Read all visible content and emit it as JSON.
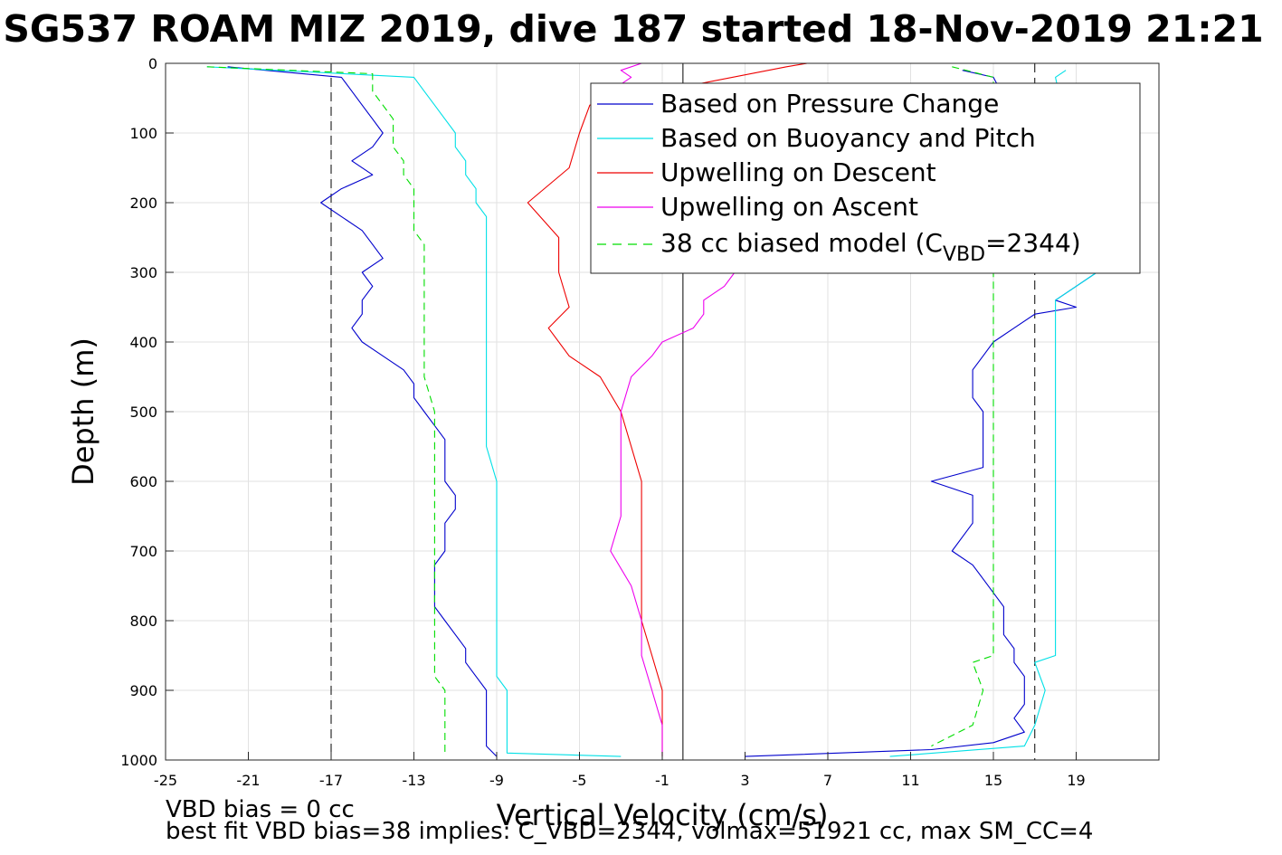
{
  "chart_data": {
    "type": "line",
    "title": "SG537 ROAM MIZ 2019, dive 187 started 18-Nov-2019 21:21",
    "xlabel": "Vertical Velocity (cm/s)",
    "ylabel": "Depth (m)",
    "xlim": [
      -25,
      23
    ],
    "ylim": [
      0,
      1000
    ],
    "y_reversed": true,
    "xticks": [
      -25,
      -21,
      -17,
      -13,
      -9,
      -5,
      -1,
      3,
      7,
      11,
      15,
      19
    ],
    "xtick_labels": [
      "-25",
      "-21",
      "-17",
      "-13",
      "-9",
      "-5",
      "-1",
      "3",
      "7",
      "11",
      "15",
      "19"
    ],
    "yticks": [
      0,
      100,
      200,
      300,
      400,
      500,
      600,
      700,
      800,
      900,
      1000
    ],
    "ytick_labels": [
      "0",
      "100",
      "200",
      "300",
      "400",
      "500",
      "600",
      "700",
      "800",
      "900",
      "1000"
    ],
    "grid": true,
    "legend_position": "top-right",
    "reference_lines": [
      {
        "x": -17,
        "style": "dashed",
        "color": "#000000"
      },
      {
        "x": 17,
        "style": "dashed",
        "color": "#000000"
      },
      {
        "x": 0,
        "style": "solid",
        "color": "#000000"
      }
    ],
    "series": [
      {
        "name": "Based on Pressure Change",
        "color": "#0000cc",
        "style": "solid",
        "segments": [
          {
            "depth": [
              5,
              20,
              40,
              60,
              80,
              100,
              120,
              140,
              160,
              180,
              200,
              220,
              240,
              260,
              280,
              300,
              320,
              340,
              360,
              380,
              400,
              420,
              440,
              460,
              480,
              500,
              520,
              540,
              560,
              580,
              600,
              620,
              640,
              660,
              680,
              700,
              720,
              740,
              760,
              780,
              800,
              820,
              840,
              860,
              880,
              900,
              920,
              940,
              960,
              980,
              995
            ],
            "values": [
              -22,
              -16.5,
              -16,
              -15.5,
              -15,
              -14.5,
              -15,
              -16,
              -15,
              -16.5,
              -17.5,
              -16.5,
              -15.5,
              -15,
              -14.5,
              -15.5,
              -15,
              -15.5,
              -15.5,
              -16,
              -15.5,
              -14.5,
              -13.5,
              -13,
              -13,
              -12.5,
              -12,
              -11.5,
              -11.5,
              -11.5,
              -11.5,
              -11,
              -11,
              -11.5,
              -11.5,
              -11.5,
              -12,
              -12,
              -12,
              -12,
              -11.5,
              -11,
              -10.5,
              -10.5,
              -10,
              -9.5,
              -9.5,
              -9.5,
              -9.5,
              -9.5,
              -9
            ]
          },
          {
            "depth": [
              10,
              20,
              300,
              320,
              340,
              350,
              360,
              380,
              400,
              420,
              440,
              460,
              480,
              500,
              520,
              540,
              560,
              580,
              600,
              620,
              640,
              660,
              680,
              700,
              720,
              740,
              760,
              780,
              800,
              820,
              840,
              860,
              880,
              900,
              920,
              940,
              960,
              975,
              985,
              995
            ],
            "values": [
              13.5,
              15,
              20,
              19,
              18,
              19,
              17,
              16,
              15,
              14.5,
              14,
              14,
              14,
              14.5,
              14.5,
              14.5,
              14.5,
              14.5,
              12,
              14,
              14,
              14,
              13.5,
              13,
              14,
              14.5,
              15,
              15.5,
              15.5,
              15.5,
              16,
              16,
              16.5,
              16.5,
              16.5,
              16,
              16.5,
              15,
              12,
              3
            ]
          }
        ]
      },
      {
        "name": "Based on Buoyancy and Pitch",
        "color": "#00e0e6",
        "style": "solid",
        "segments": [
          {
            "depth": [
              5,
              20,
              40,
              60,
              80,
              100,
              120,
              140,
              160,
              180,
              200,
              220,
              240,
              260,
              280,
              300,
              320,
              340,
              360,
              380,
              400,
              420,
              440,
              460,
              480,
              500,
              550,
              600,
              650,
              700,
              750,
              800,
              850,
              880,
              900,
              950,
              990,
              995
            ],
            "values": [
              -23,
              -13,
              -12.5,
              -12,
              -11.5,
              -11,
              -11,
              -10.5,
              -10.5,
              -10,
              -10,
              -9.5,
              -9.5,
              -9.5,
              -9.5,
              -9.5,
              -9.5,
              -9.5,
              -9.5,
              -9.5,
              -9.5,
              -9.5,
              -9.5,
              -9.5,
              -9.5,
              -9.5,
              -9.5,
              -9,
              -9,
              -9,
              -9,
              -9,
              -9,
              -9,
              -8.5,
              -8.5,
              -8.5,
              -3
            ]
          },
          {
            "depth": [
              10,
              20,
              300,
              320,
              340,
              360,
              380,
              400,
              450,
              500,
              550,
              600,
              650,
              700,
              750,
              800,
              850,
              860,
              900,
              950,
              980,
              995
            ],
            "values": [
              18.5,
              18,
              20,
              19,
              18,
              18,
              18,
              18,
              18,
              18,
              18,
              18,
              18,
              18,
              18,
              18,
              18,
              17,
              17.5,
              17,
              16.5,
              10
            ]
          }
        ]
      },
      {
        "name": "Upwelling on Descent",
        "color": "#ee0000",
        "style": "solid",
        "segments": [
          {
            "depth": [
              0,
              5,
              60,
              100,
              150,
              200,
              250,
              300,
              350,
              380,
              420,
              450,
              500,
              550,
              600,
              650,
              700,
              750,
              800,
              850,
              900,
              950,
              995
            ],
            "values": [
              6,
              5,
              -4.5,
              -5,
              -5.5,
              -7.5,
              -6,
              -6,
              -5.5,
              -6.5,
              -5.5,
              -4,
              -3,
              -2.5,
              -2,
              -2,
              -2,
              -2,
              -2,
              -1.5,
              -1,
              -1,
              -1
            ]
          }
        ]
      },
      {
        "name": "Upwelling on Ascent",
        "color": "#ee00ee",
        "style": "solid",
        "segments": [
          {
            "depth": [
              0,
              10,
              20,
              30,
              40,
              50,
              55
            ],
            "values": [
              -2,
              -3,
              -2.5,
              -3,
              -2.5,
              -2.5,
              -2.5
            ]
          },
          {
            "depth": [
              300,
              320,
              340,
              360,
              380,
              400,
              420,
              450,
              500,
              550,
              600,
              650,
              700,
              750,
              800,
              850,
              900,
              950,
              995
            ],
            "values": [
              2.5,
              2,
              1,
              1,
              0.5,
              -1,
              -1.5,
              -2.5,
              -3,
              -3,
              -3,
              -3,
              -3.5,
              -2.5,
              -2,
              -2,
              -1.5,
              -1,
              -1
            ]
          }
        ]
      },
      {
        "name": "38 cc biased model (C_VBD=2344)",
        "color": "#00dd00",
        "style": "dashed",
        "segments": [
          {
            "depth": [
              5,
              15,
              40,
              60,
              80,
              100,
              120,
              140,
              160,
              180,
              200,
              220,
              240,
              260,
              280,
              300,
              350,
              400,
              450,
              500,
              550,
              600,
              650,
              700,
              750,
              800,
              850,
              880,
              900,
              950,
              990
            ],
            "values": [
              -23,
              -15,
              -15,
              -14.5,
              -14,
              -14,
              -14,
              -13.5,
              -13.5,
              -13,
              -13,
              -13,
              -13,
              -12.5,
              -12.5,
              -12.5,
              -12.5,
              -12.5,
              -12.5,
              -12,
              -12,
              -12,
              -12,
              -12,
              -12,
              -12,
              -12,
              -12,
              -11.5,
              -11.5,
              -11.5
            ]
          },
          {
            "depth": [
              5,
              20,
              320,
              350,
              400,
              450,
              500,
              550,
              600,
              650,
              700,
              750,
              800,
              850,
              860,
              900,
              950,
              980
            ],
            "values": [
              13,
              15,
              15,
              15,
              15,
              15,
              15,
              15,
              15,
              15,
              15,
              15,
              15,
              15,
              14,
              14.5,
              14,
              12
            ]
          }
        ]
      }
    ]
  },
  "legend": {
    "entries": [
      {
        "label": "Based on Pressure Change",
        "color": "#0000cc",
        "dashed": false
      },
      {
        "label": "Based on Buoyancy and Pitch",
        "color": "#00e0e6",
        "dashed": false
      },
      {
        "label": "Upwelling on Descent",
        "color": "#ee0000",
        "dashed": false
      },
      {
        "label": "Upwelling on Ascent",
        "color": "#ee00ee",
        "dashed": false
      },
      {
        "label_main": "38 cc biased model (C",
        "label_sub": "VBD",
        "label_tail": "=2344)",
        "color": "#00dd00",
        "dashed": true
      }
    ]
  },
  "footer": {
    "line1": "VBD bias = 0 cc",
    "line2": "best fit VBD bias=38 implies: C_VBD=2344, volmax=51921 cc, max SM_CC=4"
  }
}
